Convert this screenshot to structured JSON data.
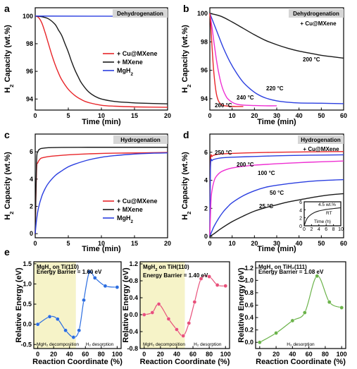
{
  "chart_data": [
    {
      "panel": "a",
      "type": "line",
      "banner": "Dehydrogenation",
      "xlabel": "Time (min)",
      "ylabel_base": "H",
      "ylabel_sub": "2",
      "ylabel_rest": " Capacity (wt.%)",
      "xlim": [
        0,
        20
      ],
      "ylim": [
        93.2,
        100.6
      ],
      "xticks": [
        0,
        5,
        10,
        15,
        20
      ],
      "yticks": [
        94,
        96,
        98,
        100
      ],
      "series": [
        {
          "name": "+ Cu@MXene",
          "color": "#e8262a",
          "x": [
            0,
            0.5,
            1,
            1.5,
            2,
            2.5,
            3,
            3.5,
            4,
            5,
            6,
            7,
            8,
            10,
            12,
            15,
            20
          ],
          "y": [
            100,
            99.9,
            99.5,
            98.8,
            98.0,
            97.2,
            96.5,
            95.9,
            95.4,
            94.7,
            94.25,
            93.95,
            93.75,
            93.55,
            93.48,
            93.43,
            93.4
          ]
        },
        {
          "name": "+ MXene",
          "color": "#1a1a1a",
          "x": [
            0,
            1,
            2,
            3,
            3.5,
            4,
            4.5,
            5,
            5.5,
            6,
            6.5,
            7,
            8,
            9,
            10,
            12,
            14,
            16,
            20
          ],
          "y": [
            100,
            99.95,
            99.8,
            99.4,
            99.0,
            98.6,
            98.0,
            97.4,
            96.7,
            96.1,
            95.6,
            95.15,
            94.55,
            94.2,
            94.0,
            93.82,
            93.75,
            93.7,
            93.65
          ]
        },
        {
          "name": "MgH",
          "name_sub": "2",
          "color": "#2b3fe0",
          "x": [
            0,
            20
          ],
          "y": [
            100,
            99.98
          ]
        }
      ],
      "legend_position": "right"
    },
    {
      "panel": "b",
      "type": "line",
      "banner": "Dehydrogenation",
      "subtitle": "+ Cu@MXene",
      "xlabel": "Time (min)",
      "ylabel_base": "H",
      "ylabel_sub": "2",
      "ylabel_rest": " Capacity (wt.%)",
      "xlim": [
        0,
        60
      ],
      "ylim": [
        93.2,
        100.4
      ],
      "xticks": [
        0,
        10,
        20,
        30,
        40,
        50,
        60
      ],
      "yticks": [
        94,
        96,
        98,
        100
      ],
      "series": [
        {
          "label": "200 °C",
          "color": "#1a1a1a",
          "x": [
            0,
            5,
            10,
            15,
            20,
            25,
            30,
            35,
            40,
            45,
            50,
            55,
            60
          ],
          "y": [
            100,
            99.8,
            99.4,
            98.95,
            98.5,
            98.1,
            97.8,
            97.55,
            97.35,
            97.2,
            97.05,
            96.95,
            96.85
          ]
        },
        {
          "label": "220 °C",
          "color": "#2b3fe0",
          "x": [
            0,
            3,
            6,
            9,
            12,
            15,
            18,
            21,
            25,
            30,
            35,
            40,
            50,
            60
          ],
          "y": [
            100,
            98.8,
            97.6,
            96.6,
            95.8,
            95.15,
            94.7,
            94.35,
            94.05,
            93.85,
            93.75,
            93.7,
            93.68,
            93.65
          ]
        },
        {
          "label": "240 °C",
          "color": "#ee2fd2",
          "x": [
            0,
            1,
            2,
            3,
            4,
            5,
            6,
            7,
            8,
            10,
            12,
            15,
            20,
            25,
            30
          ],
          "y": [
            100,
            99.0,
            97.8,
            96.7,
            95.8,
            95.1,
            94.6,
            94.25,
            94.0,
            93.75,
            93.62,
            93.55,
            93.52,
            93.5,
            93.5
          ]
        },
        {
          "label": "260 °C",
          "color": "#e8262a",
          "x": [
            0,
            0.5,
            1,
            1.5,
            2,
            2.5,
            3,
            3.5,
            4,
            5,
            6,
            8,
            10,
            12,
            15
          ],
          "y": [
            100,
            99.0,
            97.6,
            96.4,
            95.5,
            94.8,
            94.3,
            94.0,
            93.8,
            93.6,
            93.52,
            93.48,
            93.46,
            93.45,
            93.45
          ]
        }
      ]
    },
    {
      "panel": "c",
      "type": "line",
      "banner": "Hydrogenation",
      "xlabel": "Time (min)",
      "ylabel_base": "H",
      "ylabel_sub": "2",
      "ylabel_rest": " Capacity (wt.%)",
      "xlim": [
        0,
        20
      ],
      "ylim": [
        -0.3,
        7.3
      ],
      "xticks": [
        0,
        5,
        10,
        15,
        20
      ],
      "yticks": [
        0,
        2,
        4,
        6
      ],
      "series": [
        {
          "name": "+ Cu@MXene",
          "color": "#e8262a",
          "x": [
            0,
            0.2,
            0.4,
            0.7,
            1,
            2,
            3,
            5,
            8,
            12,
            16,
            20
          ],
          "y": [
            0,
            4.6,
            5.2,
            5.45,
            5.55,
            5.65,
            5.7,
            5.78,
            5.85,
            5.9,
            5.92,
            5.95
          ]
        },
        {
          "name": "+ MXene",
          "color": "#1a1a1a",
          "x": [
            0,
            0.2,
            0.4,
            0.7,
            1,
            2,
            4,
            8,
            12,
            16,
            20
          ],
          "y": [
            0,
            5.2,
            6.0,
            6.2,
            6.25,
            6.3,
            6.32,
            6.33,
            6.33,
            6.33,
            6.33
          ]
        },
        {
          "name": "MgH",
          "name_sub": "2",
          "color": "#2b3fe0",
          "x": [
            0,
            0.2,
            0.5,
            1,
            1.5,
            2,
            3,
            4,
            5,
            6,
            8,
            10,
            12,
            14,
            16,
            18,
            20
          ],
          "y": [
            0,
            1.0,
            1.9,
            2.75,
            3.3,
            3.7,
            4.25,
            4.6,
            4.9,
            5.1,
            5.4,
            5.6,
            5.72,
            5.8,
            5.86,
            5.9,
            5.92
          ]
        }
      ],
      "legend_position": "bottom-right"
    },
    {
      "panel": "d",
      "type": "line",
      "banner": "Hydrogenation",
      "subtitle": "+ Cu@MXene",
      "xlabel": "Time (min)",
      "ylabel_base": "H",
      "ylabel_sub": "2",
      "ylabel_rest": " Capacity (wt.%)",
      "xlim": [
        0,
        60
      ],
      "ylim": [
        -0.1,
        7.3
      ],
      "xticks": [
        0,
        10,
        20,
        30,
        40,
        50,
        60
      ],
      "yticks": [
        0,
        2,
        4,
        6
      ],
      "series": [
        {
          "label": "250 °C",
          "color": "#e8262a",
          "x": [
            0,
            0.3,
            1,
            2,
            5,
            10,
            20,
            30,
            40,
            50,
            60
          ],
          "y": [
            0,
            5.3,
            5.7,
            5.8,
            5.88,
            5.92,
            5.97,
            6.0,
            6.02,
            6.04,
            6.05
          ]
        },
        {
          "label": "200 °C",
          "color": "#2b3fe0",
          "x": [
            0,
            0.3,
            1,
            2,
            5,
            10,
            20,
            30,
            40,
            50,
            60
          ],
          "y": [
            0,
            5.0,
            5.4,
            5.5,
            5.6,
            5.65,
            5.7,
            5.75,
            5.78,
            5.8,
            5.82
          ]
        },
        {
          "label": "100 °C",
          "color": "#ee2fd2",
          "x": [
            0,
            0.5,
            1,
            2,
            3,
            5,
            8,
            10,
            15,
            20,
            30,
            40,
            50,
            60
          ],
          "y": [
            0,
            2.5,
            3.3,
            4.0,
            4.3,
            4.6,
            4.8,
            4.88,
            5.0,
            5.08,
            5.18,
            5.26,
            5.32,
            5.38
          ]
        },
        {
          "label": "50 °C",
          "color": "#2b3fe0",
          "x": [
            0,
            1,
            2,
            4,
            6,
            8,
            10,
            15,
            20,
            25,
            30,
            40,
            50,
            60
          ],
          "y": [
            0,
            0.4,
            0.75,
            1.3,
            1.75,
            2.1,
            2.4,
            2.9,
            3.25,
            3.5,
            3.65,
            3.85,
            3.98,
            4.05
          ]
        },
        {
          "label": "25 °C",
          "color": "#1a1a1a",
          "x": [
            0,
            2,
            5,
            10,
            15,
            20,
            25,
            30,
            35,
            40,
            45,
            50,
            55,
            60
          ],
          "y": [
            0,
            0.2,
            0.55,
            1.05,
            1.45,
            1.8,
            2.05,
            2.25,
            2.45,
            2.6,
            2.75,
            2.88,
            2.98,
            3.05
          ]
        }
      ],
      "inset": {
        "label": "RT",
        "annotation": "4.5 wt.%",
        "xlabel": "Time (h)",
        "xlim": [
          0,
          10
        ],
        "ylim": [
          0,
          6
        ],
        "xticks": [
          0,
          2,
          4,
          6,
          8,
          10
        ],
        "yticks": [
          0,
          2,
          4,
          6
        ],
        "x": [
          0,
          0.5,
          1,
          2,
          3,
          4,
          5,
          6,
          7,
          8,
          9,
          10
        ],
        "y": [
          0,
          1.3,
          2.1,
          2.9,
          3.4,
          3.7,
          3.9,
          4.1,
          4.2,
          4.3,
          4.4,
          4.5
        ],
        "color": "#1a1a1a"
      }
    },
    {
      "panel": "e",
      "type": "line",
      "subpanels": [
        {
          "title": "MgH2 on Ti(11̅0)",
          "barrier": "Energy Barrier = 1.60 eV",
          "regions": [
            "MgH2 decomposition",
            "H2 desorption"
          ],
          "ylabel": "Relative Energy (eV)",
          "xlabel": "Reaction Coordinate (%)",
          "xlim": [
            -5,
            105
          ],
          "ylim": [
            -0.6,
            1.55
          ],
          "xticks": [
            0,
            20,
            40,
            60,
            80,
            100
          ],
          "yticks": [
            -0.5,
            0.0,
            0.5,
            1.0,
            1.5
          ],
          "x": [
            0,
            15,
            25,
            35,
            45,
            52,
            58,
            65,
            72,
            85,
            100
          ],
          "y": [
            0.0,
            0.19,
            0.13,
            -0.15,
            -0.32,
            -0.15,
            0.6,
            1.3,
            1.15,
            0.95,
            0.92
          ],
          "color": "#2b6de0",
          "shade_to": 48
        },
        {
          "title": "MgH2 on TiH(110)",
          "barrier": "Energy Barrier = 1.40 eV",
          "regions": [
            "MgH2 decomposition",
            "H2 desorption"
          ],
          "ylabel": "Relative Energy (eV)",
          "xlabel": "Reaction Coordinate (%)",
          "xlim": [
            -5,
            105
          ],
          "ylim": [
            -0.8,
            1.25
          ],
          "xticks": [
            0,
            20,
            40,
            60,
            80,
            100
          ],
          "yticks": [
            -0.8,
            -0.4,
            0.0,
            0.4,
            0.8,
            1.2
          ],
          "x": [
            0,
            10,
            18,
            30,
            40,
            48,
            55,
            62,
            70,
            80,
            90,
            100
          ],
          "y": [
            0.0,
            0.05,
            0.25,
            -0.1,
            -0.35,
            -0.5,
            -0.2,
            0.3,
            0.85,
            0.9,
            0.7,
            0.68
          ],
          "color": "#e8507a",
          "shade_to": 50
        },
        {
          "title": "MgH2 on TiH2(111)",
          "barrier": "Energy Barrier = 1.08 eV",
          "regions": [
            "H2 desorption"
          ],
          "ylabel": "Relative Energy (eV)",
          "xlabel": "Reaction Coordinate (%)",
          "xlim": [
            -5,
            105
          ],
          "ylim": [
            -0.1,
            1.3
          ],
          "xticks": [
            0,
            20,
            40,
            60,
            80,
            100
          ],
          "yticks": [
            0.0,
            0.2,
            0.4,
            0.6,
            0.8,
            1.0,
            1.2
          ],
          "x": [
            0,
            20,
            40,
            55,
            70,
            85,
            100
          ],
          "y": [
            0.0,
            0.15,
            0.35,
            0.48,
            1.07,
            0.65,
            0.56
          ],
          "color": "#6bb34a",
          "shade_to": null
        }
      ]
    }
  ],
  "labels": {
    "panel_a": "a",
    "panel_b": "b",
    "panel_c": "c",
    "panel_d": "d",
    "panel_e": "e",
    "inset_annotation": "4.5 wt.%",
    "inset_rt": "RT",
    "inset_xlabel": "Time (h)"
  },
  "colors": {
    "red": "#e8262a",
    "black": "#1a1a1a",
    "blue": "#2b3fe0",
    "magenta": "#ee2fd2",
    "banner": "#d6d6d6",
    "shade": "#f6f3c8"
  }
}
